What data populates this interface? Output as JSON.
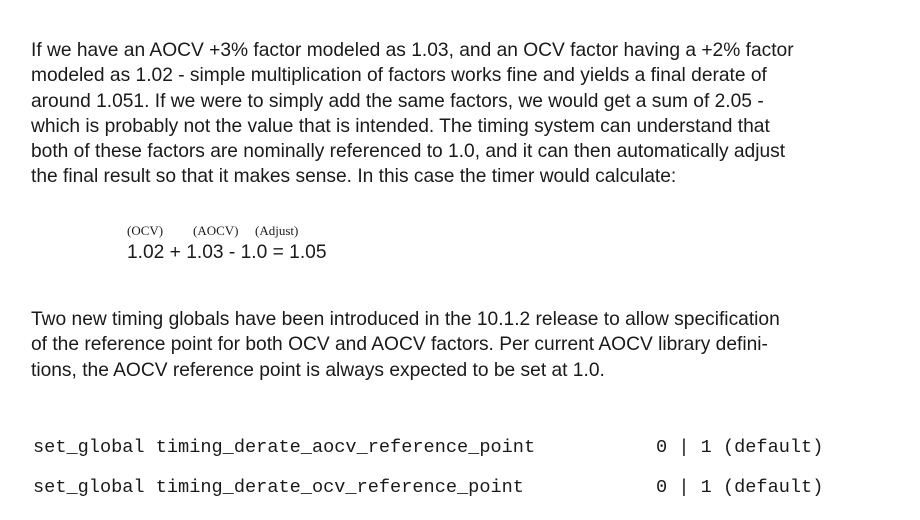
{
  "paragraph1": {
    "lines": [
      "If we have an AOCV +3% factor modeled as 1.03, and an OCV factor having a +2% factor",
      "modeled as 1.02 - simple multiplication of factors works fine and yields a final derate of",
      "around 1.051.   If we were to simply add the same factors, we would get a sum of 2.05 -",
      "which is probably not the value that is intended.   The timing system can understand that",
      "both of these factors are nominally referenced to 1.0, and it can then automatically adjust",
      "the final result so that it makes sense.   In this case the timer would calculate:"
    ]
  },
  "formula": {
    "label_ocv": "(OCV)",
    "label_aocv": "(AOCV)",
    "label_adjust": "(Adjust)",
    "equation": "1.02 + 1.03 - 1.0 = 1.05"
  },
  "paragraph2": {
    "lines": [
      "Two new timing globals have been introduced in the 10.1.2 release to allow specification",
      "of the reference point for both OCV and AOCV factors. Per current AOCV library defini-",
      "tions, the AOCV reference point is always expected to be set at 1.0."
    ]
  },
  "commands": [
    {
      "text": "set_global timing_derate_aocv_reference_point",
      "value": "0 | 1 (default)"
    },
    {
      "text": "set_global timing_derate_ocv_reference_point",
      "value": "0 | 1 (default)"
    }
  ]
}
